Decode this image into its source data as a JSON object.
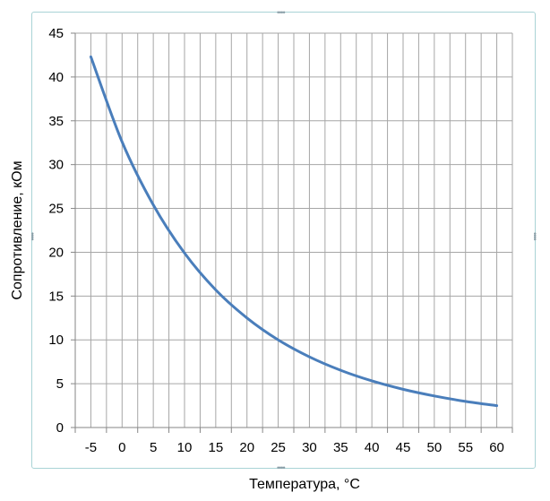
{
  "chart_data": {
    "type": "line",
    "xlabel": "Температура,  °C",
    "ylabel": "Сопротивление, кОм",
    "categories": [
      "-5",
      "0",
      "5",
      "10",
      "15",
      "20",
      "25",
      "30",
      "35",
      "40",
      "45",
      "50",
      "55",
      "60"
    ],
    "series": [
      {
        "values": [
          42.3,
          32.6,
          25.4,
          19.9,
          15.7,
          12.5,
          10.0,
          8.06,
          6.53,
          5.32,
          4.36,
          3.6,
          2.98,
          2.49
        ]
      }
    ],
    "ylim": [
      0,
      45
    ],
    "yticks": [
      "0",
      "5",
      "10",
      "15",
      "20",
      "25",
      "30",
      "35",
      "40",
      "45"
    ],
    "grid": true,
    "legend": "none",
    "colors": {
      "line": "#4a7ebb",
      "grid": "#a6a6a6",
      "axis": "#868686",
      "frame": "#a9d3d6"
    }
  }
}
